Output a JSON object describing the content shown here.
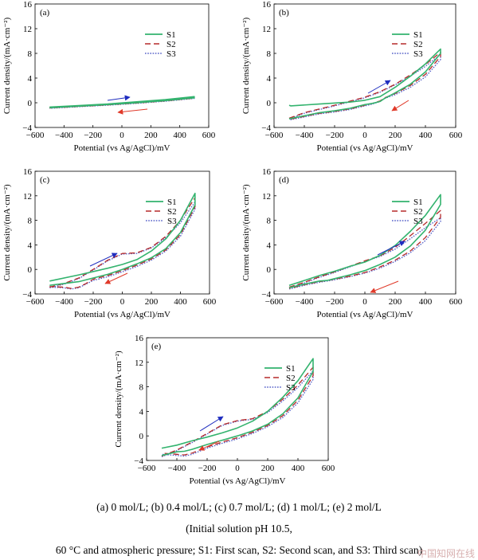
{
  "chart_data": [
    {
      "type": "line",
      "panel_label": "(a)",
      "xlabel": "Potential (vs Ag/AgCl)/mV",
      "ylabel": "Current density/(mA·cm⁻²)",
      "xlim": [
        -600,
        600
      ],
      "ylim": [
        -4,
        16
      ],
      "x_ticks": [
        -600,
        -400,
        -200,
        0,
        200,
        400,
        600
      ],
      "y_ticks": [
        -4,
        0,
        4,
        8,
        12,
        16
      ],
      "legend": [
        "S1",
        "S2",
        "S3"
      ],
      "legend_position": "top-right",
      "series": [
        {
          "name": "S1",
          "color": "#33b36e",
          "style": "solid",
          "forward": {
            "x": [
              -500,
              -300,
              -100,
              100,
              300,
              500
            ],
            "y": [
              -0.7,
              -0.45,
              -0.2,
              0.15,
              0.5,
              1.0
            ]
          },
          "backward": {
            "x": [
              500,
              300,
              100,
              -100,
              -300,
              -500
            ],
            "y": [
              0.8,
              0.35,
              0.0,
              -0.3,
              -0.55,
              -0.8
            ]
          }
        },
        {
          "name": "S2",
          "color": "#b52a2a",
          "style": "dashed",
          "forward": {
            "x": [
              -500,
              -300,
              -100,
              100,
              300,
              500
            ],
            "y": [
              -0.75,
              -0.5,
              -0.25,
              0.1,
              0.45,
              0.9
            ]
          },
          "backward": {
            "x": [
              500,
              300,
              100,
              -100,
              -300,
              -500
            ],
            "y": [
              0.75,
              0.3,
              -0.05,
              -0.35,
              -0.6,
              -0.85
            ]
          }
        },
        {
          "name": "S3",
          "color": "#5560c8",
          "style": "dotted",
          "forward": {
            "x": [
              -500,
              -300,
              -100,
              100,
              300,
              500
            ],
            "y": [
              -0.8,
              -0.55,
              -0.3,
              0.05,
              0.4,
              0.85
            ]
          },
          "backward": {
            "x": [
              500,
              300,
              100,
              -100,
              -300,
              -500
            ],
            "y": [
              0.7,
              0.25,
              -0.1,
              -0.4,
              -0.65,
              -0.9
            ]
          }
        }
      ]
    },
    {
      "type": "line",
      "panel_label": "(b)",
      "xlabel": "Potential (vs Ag/AgCl)/mV",
      "ylabel": "Current density/(mA·cm⁻²)",
      "xlim": [
        -600,
        600
      ],
      "ylim": [
        -4,
        16
      ],
      "x_ticks": [
        -600,
        -400,
        -200,
        0,
        200,
        400,
        600
      ],
      "y_ticks": [
        -4,
        0,
        4,
        8,
        12,
        16
      ],
      "legend": [
        "S1",
        "S2",
        "S3"
      ],
      "legend_position": "top-right",
      "series": [
        {
          "name": "S1",
          "color": "#33b36e",
          "style": "solid",
          "forward": {
            "x": [
              -500,
              -490,
              -300,
              -100,
              0,
              100,
              200,
              300,
              400,
              500
            ],
            "y": [
              -0.4,
              -0.5,
              -0.2,
              0.1,
              0.4,
              1.0,
              2.5,
              4.3,
              6.3,
              8.7
            ]
          },
          "backward": {
            "x": [
              500,
              400,
              300,
              200,
              130,
              100,
              50,
              0,
              -100,
              -200,
              -300,
              -500
            ],
            "y": [
              8.0,
              5.0,
              3.0,
              1.6,
              0.7,
              0.2,
              -0.1,
              -0.3,
              -0.9,
              -1.3,
              -1.6,
              -2.6
            ]
          }
        },
        {
          "name": "S2",
          "color": "#b52a2a",
          "style": "dashed",
          "forward": {
            "x": [
              -500,
              -400,
              -200,
              0,
              100,
              200,
              300,
              400,
              500
            ],
            "y": [
              -2.5,
              -1.6,
              -0.4,
              0.9,
              1.8,
              3.0,
              4.5,
              6.2,
              8.2
            ]
          },
          "backward": {
            "x": [
              500,
              400,
              300,
              200,
              130,
              100,
              50,
              0,
              -100,
              -200,
              -300,
              -500
            ],
            "y": [
              7.5,
              4.6,
              2.8,
              1.5,
              0.8,
              0.3,
              -0.1,
              -0.4,
              -1.0,
              -1.4,
              -1.7,
              -2.7
            ]
          }
        },
        {
          "name": "S3",
          "color": "#5560c8",
          "style": "dotted",
          "forward": {
            "x": [
              -500,
              -400,
              -200,
              0,
              100,
              200,
              300,
              400,
              500
            ],
            "y": [
              -2.6,
              -1.7,
              -0.5,
              0.8,
              1.7,
              2.9,
              4.3,
              5.9,
              7.8
            ]
          },
          "backward": {
            "x": [
              500,
              400,
              300,
              200,
              130,
              100,
              50,
              0,
              -100,
              -200,
              -300,
              -500
            ],
            "y": [
              7.0,
              4.2,
              2.5,
              1.3,
              0.7,
              0.2,
              -0.2,
              -0.5,
              -1.1,
              -1.5,
              -1.8,
              -2.8
            ]
          }
        }
      ]
    },
    {
      "type": "line",
      "panel_label": "(c)",
      "xlabel": "Potential (vs Ag/AgCl)/mV",
      "ylabel": "Current density/(mA·cm⁻²)",
      "xlim": [
        -600,
        600
      ],
      "ylim": [
        -4,
        16
      ],
      "x_ticks": [
        -600,
        -400,
        -200,
        0,
        200,
        400,
        600
      ],
      "y_ticks": [
        -4,
        0,
        4,
        8,
        12,
        16
      ],
      "legend": [
        "S1",
        "S2",
        "S3"
      ],
      "legend_position": "top-right",
      "series": [
        {
          "name": "S1",
          "color": "#33b36e",
          "style": "solid",
          "forward": {
            "x": [
              -500,
              -300,
              -100,
              0,
              100,
              200,
              300,
              400,
              500
            ],
            "y": [
              -1.9,
              -0.9,
              0.2,
              0.8,
              1.6,
              3.0,
              5.0,
              8.0,
              12.4
            ]
          },
          "backward": {
            "x": [
              500,
              400,
              300,
              200,
              100,
              0,
              -100,
              -200,
              -300,
              -500
            ],
            "y": [
              10.5,
              6.0,
              3.4,
              1.9,
              0.9,
              0.0,
              -0.8,
              -1.4,
              -2.0,
              -2.6
            ]
          }
        },
        {
          "name": "S2",
          "color": "#b52a2a",
          "style": "dashed",
          "forward": {
            "x": [
              -500,
              -400,
              -300,
              -200,
              -100,
              0,
              100,
              200,
              300,
              400,
              500
            ],
            "y": [
              -2.9,
              -2.3,
              -1.4,
              0.0,
              1.5,
              2.6,
              2.7,
              3.6,
              5.4,
              8.0,
              11.7
            ]
          },
          "backward": {
            "x": [
              500,
              400,
              300,
              200,
              100,
              0,
              -100,
              -200,
              -250,
              -300,
              -350,
              -400,
              -500
            ],
            "y": [
              10.2,
              5.7,
              3.2,
              1.7,
              0.7,
              -0.2,
              -1.0,
              -1.6,
              -2.3,
              -2.9,
              -3.1,
              -2.9,
              -2.8
            ]
          }
        },
        {
          "name": "S3",
          "color": "#5560c8",
          "style": "dotted",
          "forward": {
            "x": [
              -500,
              -400,
              -300,
              -200,
              -100,
              0,
              100,
              200,
              300,
              400,
              500
            ],
            "y": [
              -3.0,
              -2.4,
              -1.5,
              -0.1,
              1.4,
              2.5,
              2.6,
              3.5,
              5.2,
              7.6,
              11.0
            ]
          },
          "backward": {
            "x": [
              500,
              400,
              300,
              200,
              100,
              0,
              -100,
              -200,
              -250,
              -300,
              -350,
              -400,
              -500
            ],
            "y": [
              9.8,
              5.4,
              3.0,
              1.5,
              0.5,
              -0.4,
              -1.2,
              -1.8,
              -2.4,
              -3.0,
              -3.2,
              -3.0,
              -2.9
            ]
          }
        }
      ]
    },
    {
      "type": "line",
      "panel_label": "(d)",
      "xlabel": "Potential (vs Ag/AgCl)/mV",
      "ylabel": "Current density/(mA·cm⁻²)",
      "xlim": [
        -600,
        600
      ],
      "ylim": [
        -4,
        16
      ],
      "x_ticks": [
        -600,
        -400,
        -200,
        0,
        200,
        400,
        600
      ],
      "y_ticks": [
        -4,
        0,
        4,
        8,
        12,
        16
      ],
      "legend": [
        "S1",
        "S2",
        "S3"
      ],
      "legend_position": "top-right",
      "series": [
        {
          "name": "S1",
          "color": "#33b36e",
          "style": "solid",
          "forward": {
            "x": [
              -500,
              -400,
              -300,
              -200,
              -100,
              0,
              100,
              200,
              300,
              400,
              500
            ],
            "y": [
              -2.6,
              -1.8,
              -1.0,
              -0.3,
              0.5,
              1.2,
              2.3,
              3.9,
              6.2,
              8.8,
              12.2
            ]
          },
          "backward": {
            "x": [
              500,
              400,
              300,
              200,
              100,
              0,
              -100,
              -200,
              -250,
              -300,
              -400,
              -500
            ],
            "y": [
              10.6,
              6.4,
              3.8,
              2.0,
              0.8,
              -0.2,
              -0.9,
              -1.5,
              -1.8,
              -1.9,
              -2.4,
              -3.0
            ]
          }
        },
        {
          "name": "S2",
          "color": "#b52a2a",
          "style": "dashed",
          "forward": {
            "x": [
              -500,
              -400,
              -300,
              -200,
              -100,
              0,
              100,
              200,
              300,
              400,
              500
            ],
            "y": [
              -2.9,
              -2.1,
              -1.2,
              -0.4,
              0.5,
              1.4,
              2.2,
              3.6,
              5.5,
              7.5,
              9.6
            ]
          },
          "backward": {
            "x": [
              500,
              400,
              300,
              200,
              100,
              0,
              -100,
              -200,
              -300,
              -400,
              -500
            ],
            "y": [
              8.5,
              5.2,
              3.0,
              1.5,
              0.4,
              -0.5,
              -1.1,
              -1.6,
              -2.0,
              -2.5,
              -3.1
            ]
          }
        },
        {
          "name": "S3",
          "color": "#5560c8",
          "style": "dotted",
          "forward": {
            "x": [
              -500,
              -400,
              -300,
              -200,
              -100,
              0,
              100,
              200,
              300,
              400,
              500
            ],
            "y": [
              -3.0,
              -2.2,
              -1.3,
              -0.5,
              0.4,
              1.3,
              2.1,
              3.3,
              5.0,
              6.8,
              8.4
            ]
          },
          "backward": {
            "x": [
              500,
              400,
              300,
              200,
              100,
              0,
              -100,
              -200,
              -300,
              -400,
              -500
            ],
            "y": [
              7.8,
              4.7,
              2.7,
              1.3,
              0.2,
              -0.6,
              -1.2,
              -1.7,
              -2.1,
              -2.6,
              -3.2
            ]
          }
        }
      ]
    },
    {
      "type": "line",
      "panel_label": "(e)",
      "xlabel": "Potential (vs Ag/AgCl)/mV",
      "ylabel": "Current density/(mA·cm⁻²)",
      "xlim": [
        -600,
        600
      ],
      "ylim": [
        -4,
        16
      ],
      "x_ticks": [
        -600,
        -400,
        -200,
        0,
        200,
        400,
        600
      ],
      "y_ticks": [
        -4,
        0,
        4,
        8,
        12,
        16
      ],
      "legend": [
        "S1",
        "S2",
        "S3"
      ],
      "legend_position": "top-right",
      "series": [
        {
          "name": "S1",
          "color": "#33b36e",
          "style": "solid",
          "forward": {
            "x": [
              -500,
              -400,
              -300,
              -200,
              -100,
              0,
              100,
              200,
              300,
              400,
              500
            ],
            "y": [
              -2.0,
              -1.5,
              -0.8,
              -0.2,
              0.5,
              1.3,
              2.4,
              4.0,
              6.3,
              9.0,
              12.6
            ]
          },
          "backward": {
            "x": [
              500,
              400,
              300,
              200,
              100,
              0,
              -100,
              -200,
              -300,
              -350,
              -400,
              -500
            ],
            "y": [
              10.5,
              6.2,
              3.6,
              1.9,
              0.8,
              0.0,
              -0.7,
              -1.4,
              -2.2,
              -2.5,
              -2.6,
              -3.2
            ]
          }
        },
        {
          "name": "S2",
          "color": "#b52a2a",
          "style": "dashed",
          "forward": {
            "x": [
              -500,
              -400,
              -300,
              -200,
              -100,
              0,
              100,
              200,
              300,
              400,
              500
            ],
            "y": [
              -3.3,
              -2.3,
              -1.0,
              0.4,
              1.8,
              2.5,
              2.8,
              4.0,
              6.0,
              8.3,
              11.2
            ]
          },
          "backward": {
            "x": [
              500,
              400,
              300,
              200,
              100,
              0,
              -100,
              -200,
              -300,
              -350,
              -400,
              -500
            ],
            "y": [
              9.8,
              5.8,
              3.3,
              1.7,
              0.6,
              -0.3,
              -1.0,
              -1.8,
              -2.8,
              -3.1,
              -3.0,
              -2.8
            ]
          }
        },
        {
          "name": "S3",
          "color": "#5560c8",
          "style": "dotted",
          "forward": {
            "x": [
              -500,
              -400,
              -300,
              -200,
              -100,
              0,
              100,
              200,
              300,
              400,
              500
            ],
            "y": [
              -3.4,
              -2.4,
              -1.1,
              0.3,
              1.7,
              2.4,
              2.7,
              3.8,
              5.7,
              7.9,
              10.6
            ]
          },
          "backward": {
            "x": [
              500,
              400,
              300,
              200,
              100,
              0,
              -100,
              -200,
              -300,
              -350,
              -400,
              -500
            ],
            "y": [
              9.2,
              5.4,
              3.0,
              1.5,
              0.4,
              -0.5,
              -1.2,
              -2.0,
              -3.0,
              -3.3,
              -3.2,
              -3.0
            ]
          }
        }
      ]
    }
  ],
  "scan_arrow_colors": {
    "forward": "#1f2dbf",
    "backward": "#e03a2a"
  },
  "caption": {
    "line1": "(a) 0 mol/L; (b) 0.4 mol/L; (c) 0.7 mol/L; (d) 1 mol/L; (e) 2 mol/L",
    "line2": "(Initial solution pH 10.5,",
    "line3": "60 °C and atmospheric pressure; S1: First scan, S2: Second scan, and S3: Third scan)"
  },
  "watermark": "中国知网在线"
}
